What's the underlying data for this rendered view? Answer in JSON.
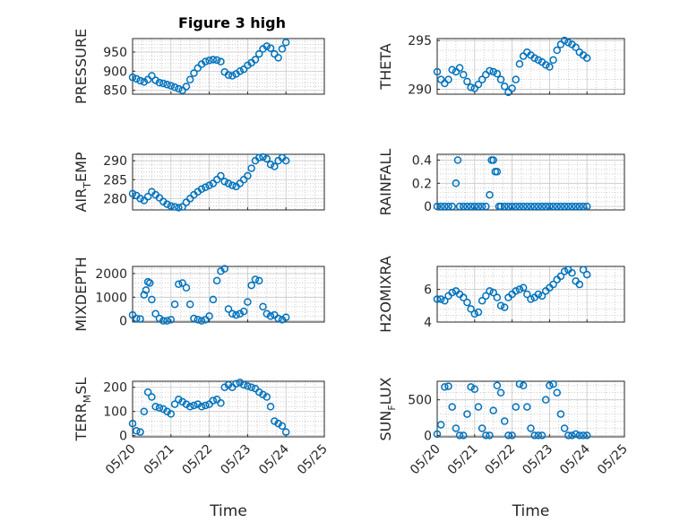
{
  "figure": {
    "title": "Figure 3 high",
    "xlabel": "Time"
  },
  "colors": {
    "marker": "#0072BD",
    "axis": "#262626",
    "grid": "#b0b0b0"
  },
  "x_tick_labels": [
    "05/20",
    "05/21",
    "05/22",
    "05/23",
    "05/24",
    "05/25"
  ],
  "chart_data": [
    {
      "type": "scatter",
      "panel": "top-left",
      "title": "Figure 3 high",
      "ylabel_main": "PRESSURE",
      "ylabel_sub": "",
      "ylabel_rest": "",
      "xlim": [
        "05/20",
        "05/25"
      ],
      "ylim": [
        840,
        985
      ],
      "yticks": [
        850,
        900,
        950
      ],
      "grid": true,
      "x_tick_labels_shown": false,
      "x": [
        0.0,
        0.1,
        0.2,
        0.3,
        0.4,
        0.5,
        0.6,
        0.7,
        0.8,
        0.9,
        1.0,
        1.1,
        1.2,
        1.3,
        1.4,
        1.5,
        1.6,
        1.7,
        1.8,
        1.9,
        2.0,
        2.1,
        2.2,
        2.3,
        2.4,
        2.5,
        2.6,
        2.7,
        2.8,
        2.9,
        3.0,
        3.1,
        3.2,
        3.3,
        3.4,
        3.5,
        3.6,
        3.7,
        3.8,
        3.9,
        4.0
      ],
      "y": [
        884,
        880,
        875,
        872,
        878,
        888,
        876,
        870,
        868,
        865,
        862,
        858,
        854,
        850,
        860,
        878,
        895,
        908,
        918,
        925,
        928,
        930,
        929,
        925,
        898,
        890,
        888,
        893,
        900,
        905,
        915,
        922,
        930,
        945,
        958,
        965,
        960,
        945,
        935,
        958,
        975
      ]
    },
    {
      "type": "scatter",
      "panel": "top-right",
      "ylabel_main": "THETA",
      "ylabel_sub": "",
      "ylabel_rest": "",
      "xlim": [
        "05/20",
        "05/25"
      ],
      "ylim": [
        289.5,
        295.2
      ],
      "yticks": [
        290,
        295
      ],
      "grid": true,
      "x_tick_labels_shown": false,
      "x": [
        0.0,
        0.1,
        0.2,
        0.3,
        0.4,
        0.5,
        0.6,
        0.7,
        0.8,
        0.9,
        1.0,
        1.1,
        1.2,
        1.3,
        1.4,
        1.5,
        1.6,
        1.7,
        1.8,
        1.9,
        2.0,
        2.1,
        2.2,
        2.3,
        2.4,
        2.5,
        2.6,
        2.7,
        2.8,
        2.9,
        3.0,
        3.1,
        3.2,
        3.3,
        3.4,
        3.5,
        3.6,
        3.7,
        3.8,
        3.9,
        4.0
      ],
      "y": [
        291.8,
        291.0,
        290.6,
        291.0,
        292.0,
        291.8,
        292.2,
        291.5,
        290.8,
        290.2,
        290.1,
        290.5,
        291.0,
        291.5,
        291.9,
        291.8,
        291.6,
        291.0,
        290.3,
        289.7,
        290.1,
        291.0,
        292.6,
        293.4,
        293.8,
        293.5,
        293.2,
        293.0,
        292.8,
        292.5,
        292.3,
        293.0,
        294.0,
        294.6,
        295.0,
        294.8,
        294.6,
        294.3,
        293.8,
        293.5,
        293.2
      ]
    },
    {
      "type": "scatter",
      "panel": "row2-left",
      "ylabel_main": "AIR",
      "ylabel_sub": "T",
      "ylabel_rest": "EMP",
      "xlim": [
        "05/20",
        "05/25"
      ],
      "ylim": [
        277,
        291.7
      ],
      "yticks": [
        280,
        285,
        290
      ],
      "grid": true,
      "x_tick_labels_shown": false,
      "x": [
        0.0,
        0.1,
        0.2,
        0.3,
        0.4,
        0.5,
        0.6,
        0.7,
        0.8,
        0.9,
        1.0,
        1.1,
        1.2,
        1.3,
        1.4,
        1.5,
        1.6,
        1.7,
        1.8,
        1.9,
        2.0,
        2.1,
        2.2,
        2.3,
        2.4,
        2.5,
        2.6,
        2.7,
        2.8,
        2.9,
        3.0,
        3.1,
        3.2,
        3.3,
        3.4,
        3.5,
        3.6,
        3.7,
        3.8,
        3.9,
        4.0
      ],
      "y": [
        281.3,
        280.8,
        280.0,
        279.5,
        280.5,
        281.8,
        281.0,
        280.2,
        279.2,
        278.5,
        278.0,
        277.8,
        277.6,
        277.8,
        279.0,
        280.0,
        281.0,
        281.8,
        282.5,
        283.0,
        283.5,
        284.0,
        285.0,
        286.0,
        284.5,
        284.0,
        283.5,
        283.2,
        284.0,
        285.0,
        286.0,
        288.0,
        290.0,
        290.8,
        291.0,
        290.5,
        289.0,
        288.5,
        290.0,
        290.8,
        290.0
      ]
    },
    {
      "type": "scatter",
      "panel": "row2-right",
      "ylabel_main": "RAINFALL",
      "ylabel_sub": "",
      "ylabel_rest": "",
      "xlim": [
        "05/20",
        "05/25"
      ],
      "ylim": [
        -0.03,
        0.45
      ],
      "yticks": [
        0,
        0.2,
        0.4
      ],
      "grid": true,
      "x_tick_labels_shown": false,
      "x": [
        0.0,
        0.1,
        0.2,
        0.3,
        0.4,
        0.5,
        0.55,
        0.6,
        0.7,
        0.8,
        0.9,
        1.0,
        1.1,
        1.2,
        1.3,
        1.4,
        1.45,
        1.5,
        1.55,
        1.6,
        1.65,
        1.7,
        1.8,
        1.9,
        2.0,
        2.1,
        2.2,
        2.3,
        2.4,
        2.5,
        2.6,
        2.7,
        2.8,
        2.9,
        3.0,
        3.1,
        3.2,
        3.3,
        3.4,
        3.5,
        3.6,
        3.7,
        3.8,
        3.9,
        4.0
      ],
      "y": [
        0,
        0,
        0,
        0,
        0,
        0.2,
        0.4,
        0,
        0,
        0,
        0,
        0,
        0,
        0,
        0,
        0.1,
        0.4,
        0.4,
        0.3,
        0.3,
        0,
        0,
        0,
        0,
        0,
        0,
        0,
        0,
        0,
        0,
        0,
        0,
        0,
        0,
        0,
        0,
        0,
        0,
        0,
        0,
        0,
        0,
        0,
        0,
        0
      ]
    },
    {
      "type": "scatter",
      "panel": "row3-left",
      "ylabel_main": "MIXDEPTH",
      "ylabel_sub": "",
      "ylabel_rest": "",
      "xlim": [
        "05/20",
        "05/25"
      ],
      "ylim": [
        -50,
        2300
      ],
      "yticks": [
        0,
        1000,
        2000
      ],
      "grid": true,
      "x_tick_labels_shown": false,
      "x": [
        0.0,
        0.1,
        0.2,
        0.3,
        0.35,
        0.4,
        0.45,
        0.5,
        0.6,
        0.7,
        0.8,
        0.9,
        1.0,
        1.1,
        1.2,
        1.3,
        1.4,
        1.5,
        1.6,
        1.7,
        1.8,
        1.9,
        2.0,
        2.1,
        2.2,
        2.3,
        2.4,
        2.5,
        2.6,
        2.7,
        2.8,
        2.9,
        3.0,
        3.1,
        3.2,
        3.3,
        3.4,
        3.5,
        3.6,
        3.7,
        3.8,
        3.9,
        4.0
      ],
      "y": [
        250,
        100,
        80,
        1100,
        1300,
        1650,
        1600,
        900,
        300,
        100,
        0,
        0,
        50,
        700,
        1550,
        1600,
        1400,
        700,
        100,
        50,
        0,
        50,
        200,
        900,
        1700,
        2100,
        2200,
        500,
        300,
        250,
        300,
        400,
        800,
        1500,
        1750,
        1700,
        600,
        300,
        200,
        250,
        100,
        50,
        150
      ]
    },
    {
      "type": "scatter",
      "panel": "row3-right",
      "ylabel_main": "H2OMIXRA",
      "ylabel_sub": "",
      "ylabel_rest": "",
      "xlim": [
        "05/20",
        "05/25"
      ],
      "ylim": [
        4,
        7.4
      ],
      "yticks": [
        4,
        6
      ],
      "grid": true,
      "x_tick_labels_shown": false,
      "x": [
        0.0,
        0.1,
        0.2,
        0.3,
        0.4,
        0.5,
        0.6,
        0.7,
        0.8,
        0.9,
        1.0,
        1.1,
        1.2,
        1.3,
        1.4,
        1.5,
        1.6,
        1.7,
        1.8,
        1.9,
        2.0,
        2.1,
        2.2,
        2.3,
        2.4,
        2.5,
        2.6,
        2.7,
        2.8,
        2.9,
        3.0,
        3.1,
        3.2,
        3.3,
        3.4,
        3.5,
        3.6,
        3.7,
        3.8,
        3.9,
        4.0
      ],
      "y": [
        5.4,
        5.4,
        5.3,
        5.6,
        5.8,
        5.9,
        5.7,
        5.5,
        5.2,
        4.8,
        4.5,
        4.6,
        5.3,
        5.6,
        5.9,
        5.8,
        5.5,
        5.0,
        4.9,
        5.5,
        5.7,
        5.9,
        6.0,
        6.1,
        5.7,
        5.4,
        5.5,
        5.7,
        5.6,
        5.9,
        6.1,
        6.3,
        6.6,
        6.8,
        7.1,
        7.2,
        7.0,
        6.5,
        6.3,
        7.2,
        6.9
      ]
    },
    {
      "type": "scatter",
      "panel": "bottom-left",
      "ylabel_main": "TERR",
      "ylabel_sub": "M",
      "ylabel_rest": "SL",
      "xlim": [
        "05/20",
        "05/25"
      ],
      "ylim": [
        -5,
        225
      ],
      "yticks": [
        0,
        100,
        200
      ],
      "grid": true,
      "x_tick_labels_shown": true,
      "x": [
        0.0,
        0.1,
        0.2,
        0.3,
        0.4,
        0.5,
        0.6,
        0.7,
        0.8,
        0.9,
        1.0,
        1.1,
        1.2,
        1.3,
        1.4,
        1.5,
        1.6,
        1.7,
        1.8,
        1.9,
        2.0,
        2.1,
        2.2,
        2.3,
        2.4,
        2.5,
        2.6,
        2.7,
        2.8,
        2.9,
        3.0,
        3.1,
        3.2,
        3.3,
        3.4,
        3.5,
        3.6,
        3.7,
        3.8,
        3.9,
        4.0
      ],
      "y": [
        50,
        20,
        15,
        100,
        180,
        160,
        120,
        115,
        110,
        100,
        90,
        130,
        150,
        140,
        130,
        120,
        125,
        130,
        120,
        125,
        130,
        145,
        150,
        135,
        200,
        210,
        200,
        215,
        220,
        210,
        205,
        200,
        195,
        180,
        170,
        160,
        120,
        60,
        50,
        40,
        15
      ]
    },
    {
      "type": "scatter",
      "panel": "bottom-right",
      "ylabel_main": "SUN",
      "ylabel_sub": "F",
      "ylabel_rest": "LUX",
      "xlim": [
        "05/20",
        "05/25"
      ],
      "ylim": [
        -20,
        760
      ],
      "yticks": [
        0,
        500
      ],
      "grid": true,
      "x_tick_labels_shown": true,
      "x": [
        0.0,
        0.1,
        0.2,
        0.3,
        0.4,
        0.5,
        0.6,
        0.7,
        0.8,
        0.9,
        1.0,
        1.1,
        1.2,
        1.3,
        1.4,
        1.5,
        1.6,
        1.7,
        1.8,
        1.9,
        2.0,
        2.1,
        2.2,
        2.3,
        2.4,
        2.5,
        2.6,
        2.7,
        2.8,
        2.9,
        3.0,
        3.1,
        3.2,
        3.3,
        3.4,
        3.5,
        3.6,
        3.7,
        3.8,
        3.9,
        4.0
      ],
      "y": [
        20,
        150,
        680,
        690,
        400,
        100,
        0,
        0,
        300,
        680,
        650,
        400,
        100,
        0,
        0,
        350,
        700,
        600,
        200,
        0,
        0,
        400,
        720,
        700,
        400,
        100,
        0,
        0,
        0,
        500,
        700,
        720,
        600,
        300,
        100,
        0,
        0,
        20,
        0,
        0,
        0
      ]
    }
  ]
}
